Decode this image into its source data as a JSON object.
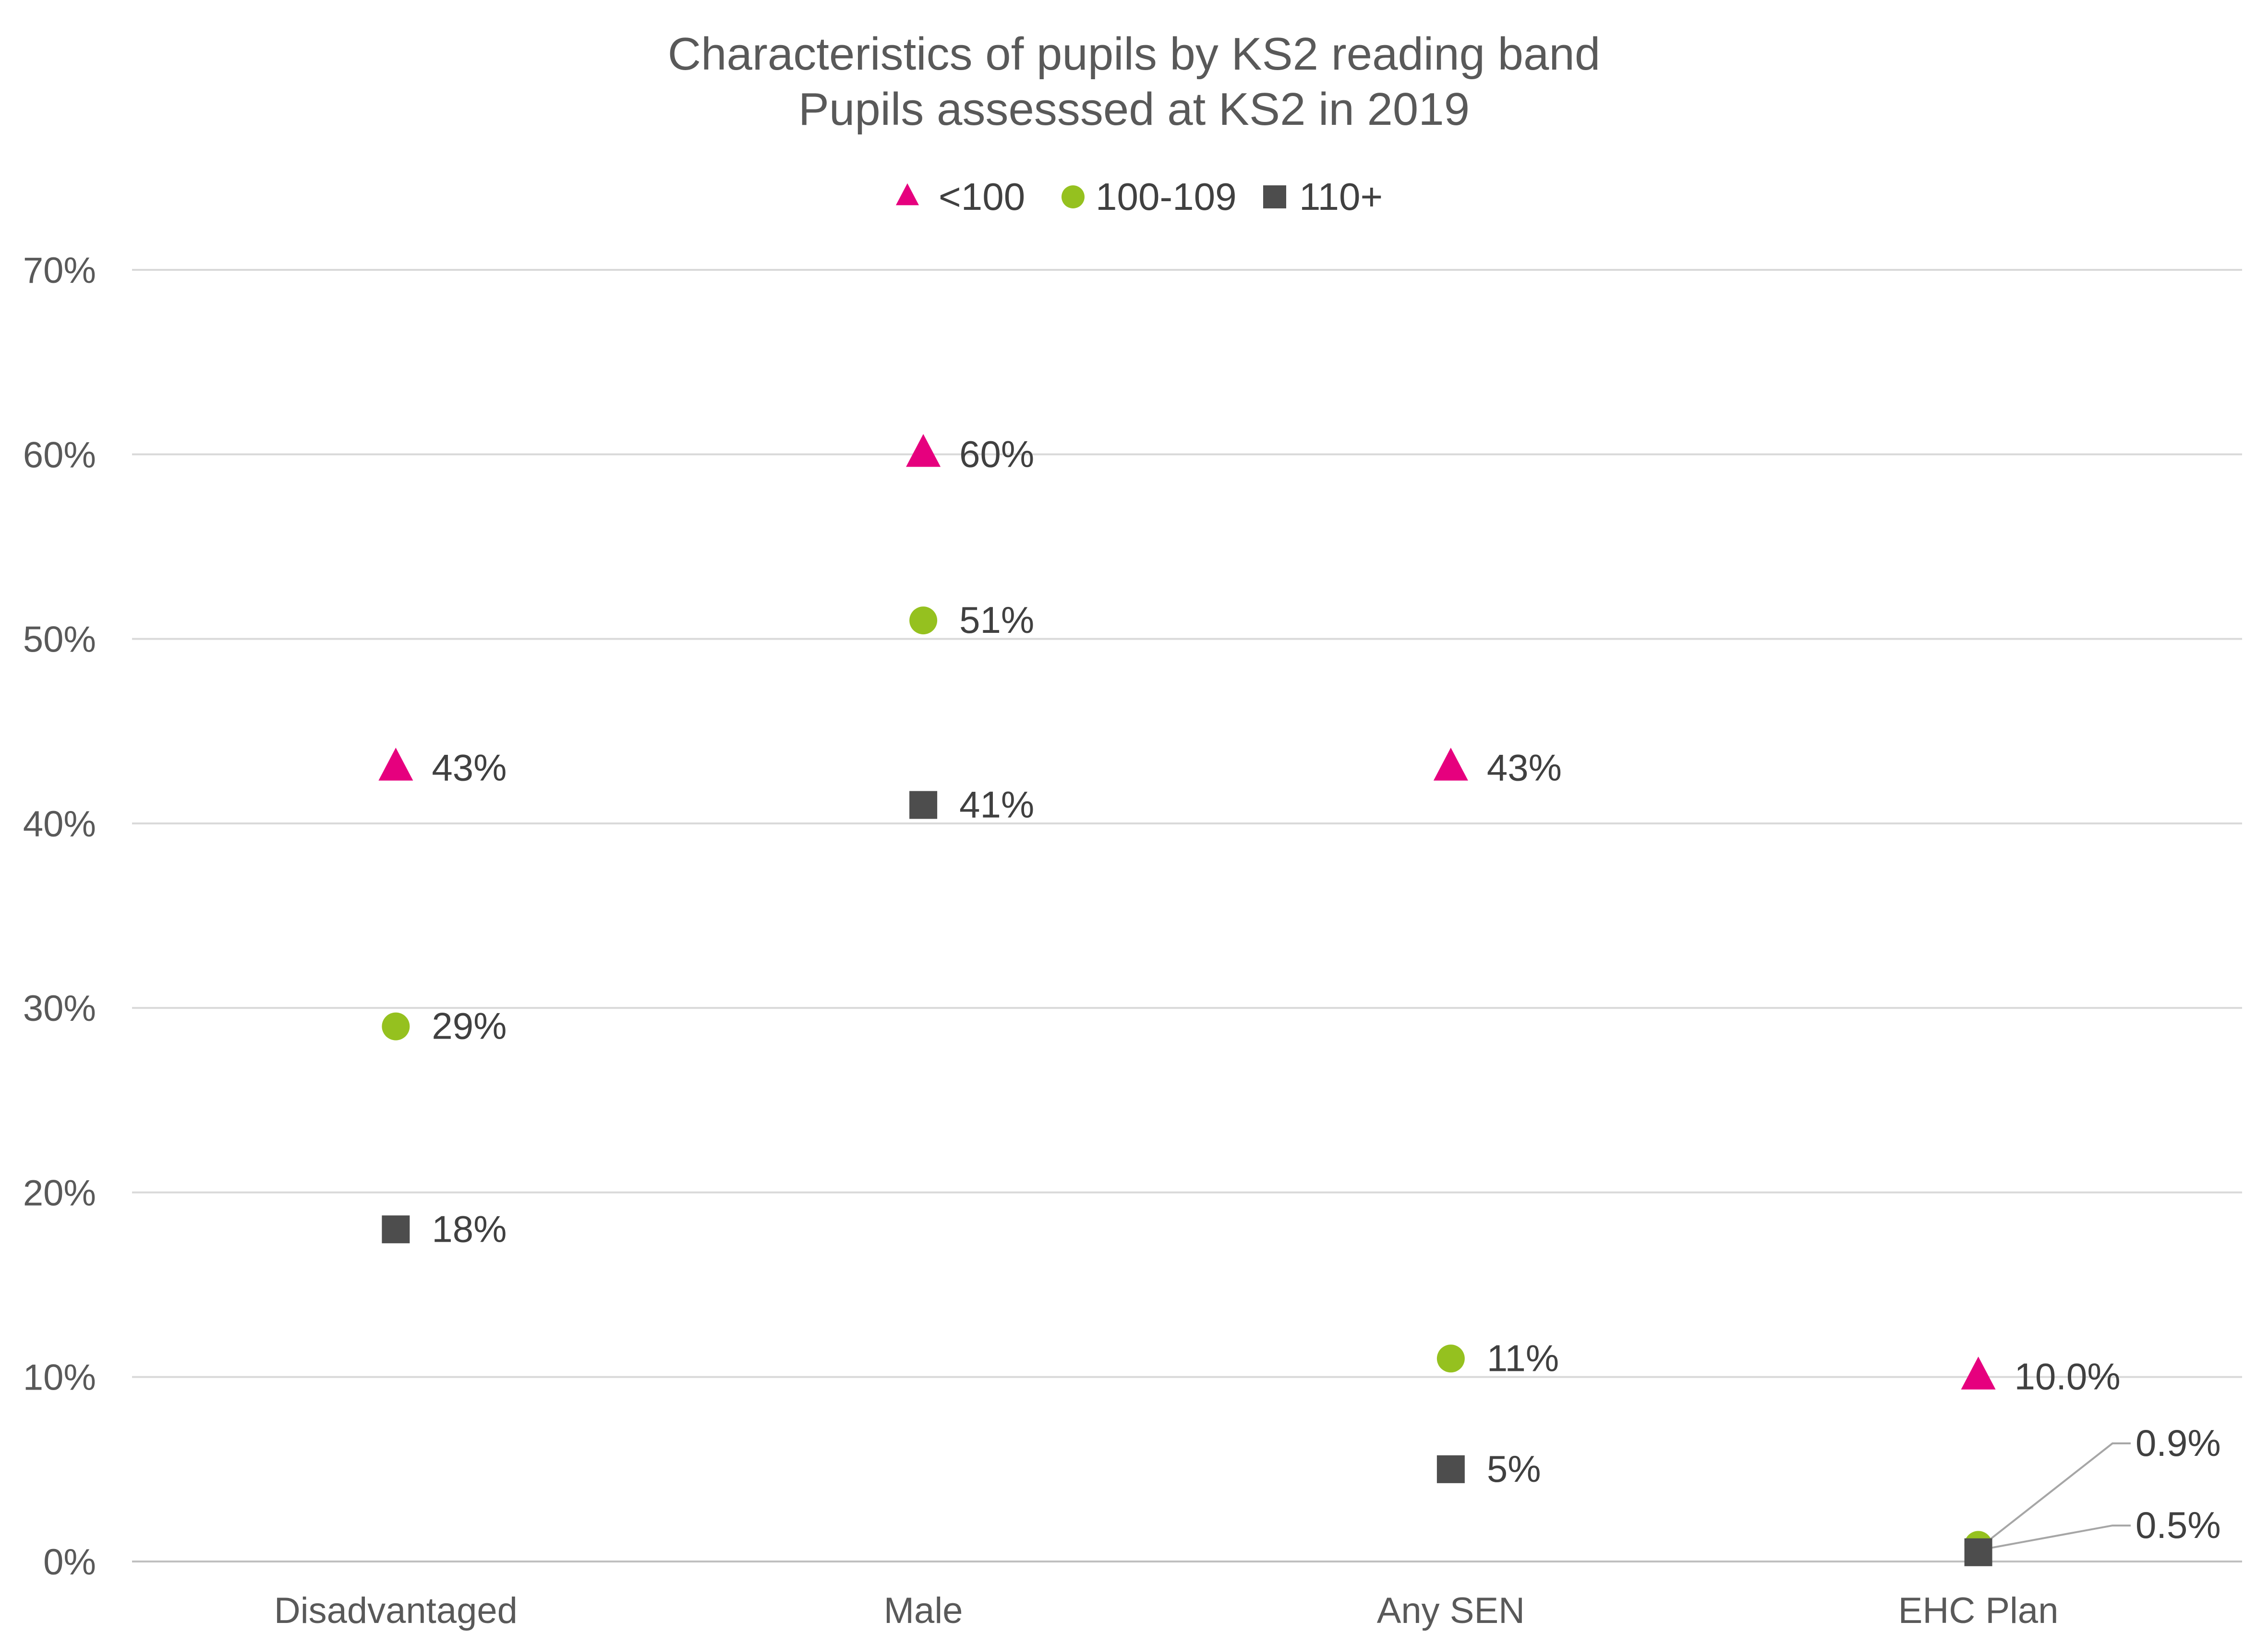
{
  "chart_data": {
    "type": "scatter",
    "title": "Characteristics of pupils by KS2 reading band",
    "subtitle": "Pupils assesssed at KS2 in 2019",
    "categories": [
      "Disadvantaged",
      "Male",
      "Any SEN",
      "EHC Plan"
    ],
    "ylim": [
      0,
      70
    ],
    "yticks": [
      "0%",
      "10%",
      "20%",
      "30%",
      "40%",
      "50%",
      "60%",
      "70%"
    ],
    "grid": true,
    "legend_position": "top",
    "series": [
      {
        "name": "<100",
        "marker": "triangle",
        "color": "#E6007E",
        "values": [
          43,
          60,
          43,
          10.0
        ],
        "labels": [
          "43%",
          "60%",
          "43%",
          "10.0%"
        ]
      },
      {
        "name": "100-109",
        "marker": "circle",
        "color": "#95C11F",
        "values": [
          29,
          51,
          11,
          0.9
        ],
        "labels": [
          "29%",
          "51%",
          "11%",
          "0.9%"
        ]
      },
      {
        "name": "110+",
        "marker": "square",
        "color": "#4D4D4D",
        "values": [
          18,
          41,
          5,
          0.5
        ],
        "labels": [
          "18%",
          "41%",
          "5%",
          "0.5%"
        ]
      }
    ]
  }
}
